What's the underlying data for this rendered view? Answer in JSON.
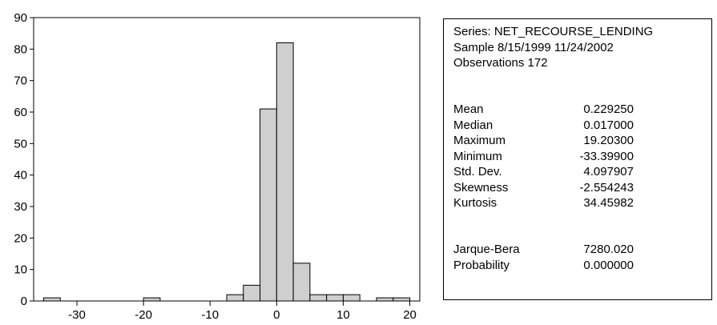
{
  "chart_data": {
    "type": "bar",
    "title": "",
    "xlabel": "",
    "ylabel": "",
    "bin_width": 2.5,
    "bin_starts": [
      -35,
      -32.5,
      -30,
      -27.5,
      -25,
      -22.5,
      -20,
      -17.5,
      -15,
      -12.5,
      -10,
      -7.5,
      -5,
      -2.5,
      0,
      2.5,
      5,
      7.5,
      10,
      12.5,
      15,
      17.5
    ],
    "values": [
      1,
      0,
      0,
      0,
      0,
      0,
      1,
      0,
      0,
      0,
      0,
      2,
      5,
      61,
      82,
      12,
      2,
      2,
      2,
      0,
      1,
      1
    ],
    "xlim": [
      -36.5,
      21.5
    ],
    "ylim": [
      0,
      90
    ],
    "x_ticks": [
      -30,
      -20,
      -10,
      0,
      10,
      20
    ],
    "y_ticks": [
      0,
      10,
      20,
      30,
      40,
      50,
      60,
      70,
      80,
      90
    ],
    "bar_color": "#cfcfcf",
    "grid": false,
    "legend": "none"
  },
  "stats": {
    "series_line": "Series: NET_RECOURSE_LENDING",
    "sample_line": "Sample 8/15/1999 11/24/2002",
    "obs_line": "Observations 172",
    "rows": [
      {
        "label": "Mean",
        "value": "0.229250"
      },
      {
        "label": "Median",
        "value": "0.017000"
      },
      {
        "label": "Maximum",
        "value": "19.20300"
      },
      {
        "label": "Minimum",
        "value": "-33.39900"
      },
      {
        "label": "Std. Dev.",
        "value": "4.097907"
      },
      {
        "label": "Skewness",
        "value": "-2.554243"
      },
      {
        "label": "Kurtosis",
        "value": "34.45982"
      }
    ],
    "test_rows": [
      {
        "label": "Jarque-Bera",
        "value": "7280.020"
      },
      {
        "label": "Probability",
        "value": "0.000000"
      }
    ]
  }
}
